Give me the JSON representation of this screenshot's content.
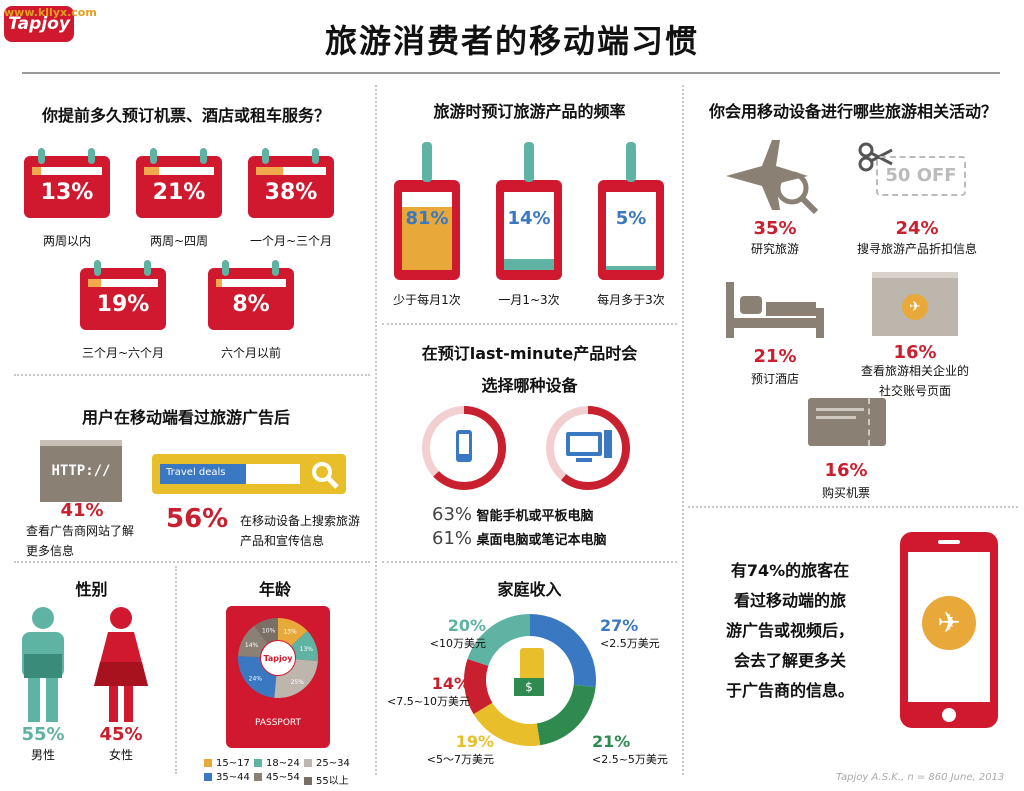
{
  "brand": {
    "logo": "Tapjoy",
    "watermark": "www.kllyx.com"
  },
  "title": "旅游消费者的移动端习惯",
  "advance_booking": {
    "heading": "你提前多久预订机票、酒店或租车服务？",
    "items": [
      {
        "pct": "13%",
        "label": "两周以内",
        "value": 0.13
      },
      {
        "pct": "21%",
        "label": "两周~四周",
        "value": 0.21
      },
      {
        "pct": "38%",
        "label": "一个月~三个月",
        "value": 0.38
      },
      {
        "pct": "19%",
        "label": "三个月~六个月",
        "value": 0.19
      },
      {
        "pct": "8%",
        "label": "六个月以前",
        "value": 0.08
      }
    ]
  },
  "frequency": {
    "heading": "旅游时预订旅游产品的频率",
    "items": [
      {
        "pct": "81%",
        "label": "少于每月1次",
        "value": 0.81,
        "color": "#e8a93a"
      },
      {
        "pct": "14%",
        "label": "一月1~3次",
        "value": 0.14,
        "color": "#5fb3a2"
      },
      {
        "pct": "5%",
        "label": "每月多于3次",
        "value": 0.05,
        "color": "#5fb3a2"
      }
    ]
  },
  "activities": {
    "heading": "你会用移动设备进行哪些旅游相关活动？",
    "coupon_text": "50 OFF",
    "items": [
      {
        "pct": "35%",
        "label": "研究旅游",
        "icon": "plane-search-icon"
      },
      {
        "pct": "24%",
        "label": "搜寻旅游产品折扣信息",
        "icon": "coupon-icon"
      },
      {
        "pct": "21%",
        "label": "预订酒店",
        "icon": "bed-icon"
      },
      {
        "pct": "16%",
        "label1": "查看旅游相关企业的",
        "label2": "社交账号页面",
        "icon": "webpage-icon"
      },
      {
        "pct": "16%",
        "label": "购买机票",
        "icon": "ticket-icon"
      }
    ]
  },
  "ads": {
    "heading": "用户在移动端看过旅游广告后",
    "http_text": "HTTP://",
    "search_placeholder": "Travel deals",
    "item1": {
      "pct": "41%",
      "line1": "查看广告商网站了解",
      "line2": "更多信息"
    },
    "item2": {
      "pct": "56%",
      "line1": "在移动设备上搜索旅游",
      "line2": "产品和宣传信息"
    }
  },
  "lastminute": {
    "heading1": "在预订last-minute产品时会",
    "heading2": "选择哪种设备",
    "items": [
      {
        "pct": "63%",
        "label": "智能手机或平板电脑",
        "value": 0.63
      },
      {
        "pct": "61%",
        "label": "桌面电脑或笔记本电脑",
        "value": 0.61
      }
    ]
  },
  "gender": {
    "heading": "性别",
    "male": {
      "pct": "55%",
      "label": "男性"
    },
    "female": {
      "pct": "45%",
      "label": "女性"
    }
  },
  "age": {
    "heading": "年龄",
    "passport": "PASSPORT",
    "chart_data": {
      "type": "pie",
      "slices": [
        {
          "label": "15~17",
          "value": 13,
          "pct": "13%",
          "color": "#e8a93a"
        },
        {
          "label": "18~24",
          "value": 13,
          "pct": "13%",
          "color": "#5fb3a2"
        },
        {
          "label": "25~34",
          "value": 25,
          "pct": "25%",
          "color": "#bdb6ad"
        },
        {
          "label": "35~44",
          "value": 24,
          "pct": "24%",
          "color": "#3a78c2"
        },
        {
          "label": "45~54",
          "value": 14,
          "pct": "14%",
          "color": "#8a8074"
        },
        {
          "label": "55以上",
          "value": 10,
          "pct": "10%",
          "color": "#7a6f64"
        }
      ]
    }
  },
  "income": {
    "heading": "家庭收入",
    "chart_data": {
      "type": "pie",
      "slices": [
        {
          "pct": "27%",
          "label": "<2.5万美元",
          "value": 27,
          "color": "#3a78c2"
        },
        {
          "pct": "21%",
          "label": "<2.5~5万美元",
          "value": 21,
          "color": "#2f8a4f"
        },
        {
          "pct": "19%",
          "label": "<5～7万美元",
          "value": 19,
          "color": "#e8bf2a"
        },
        {
          "pct": "14%",
          "label": "<7.5~10万美元",
          "value": 14,
          "color": "#c8202f"
        },
        {
          "pct": "20%",
          "label": "<10万美元",
          "value": 20,
          "color": "#5fb3a2"
        }
      ]
    }
  },
  "conclusion": {
    "lines": [
      "有74%的旅客在",
      "看过移动端的旅",
      "游广告或视频后，",
      "会去了解更多关",
      "于广告商的信息。"
    ]
  },
  "source": "Tapjoy A.S.K., n = 860 June, 2013"
}
